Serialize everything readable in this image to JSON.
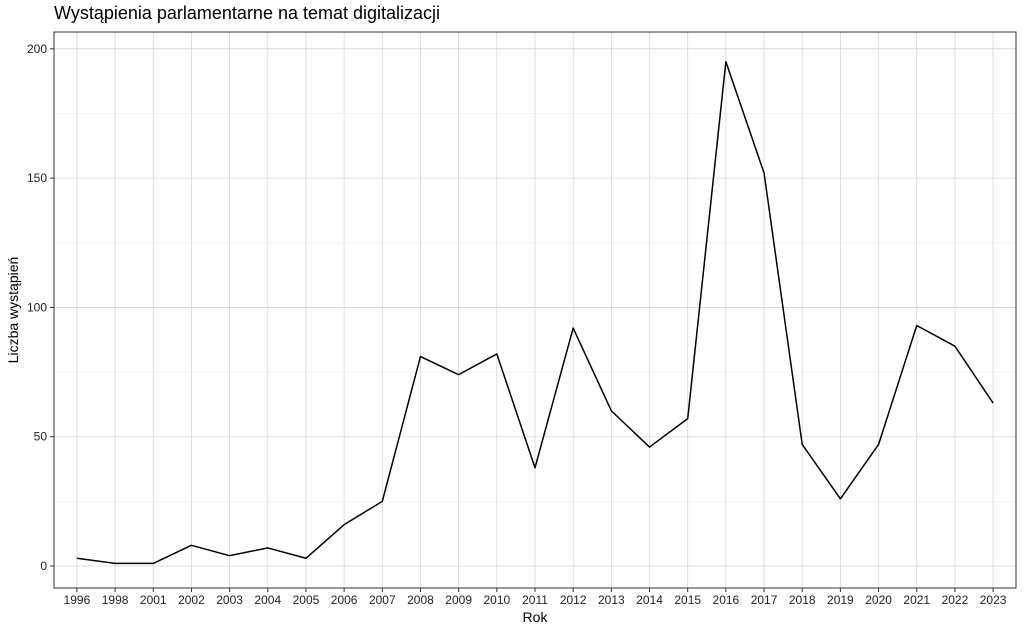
{
  "chart_data": {
    "type": "line",
    "title": "Wystąpienia parlamentarne na temat digitalizacji",
    "xlabel": "Rok",
    "ylabel": "Liczba wystąpień",
    "categories": [
      "1996",
      "1998",
      "2001",
      "2002",
      "2003",
      "2004",
      "2005",
      "2006",
      "2007",
      "2008",
      "2009",
      "2010",
      "2011",
      "2012",
      "2013",
      "2014",
      "2015",
      "2016",
      "2017",
      "2018",
      "2019",
      "2020",
      "2021",
      "2022",
      "2023"
    ],
    "series": [
      {
        "values": [
          3,
          1,
          1,
          8,
          4,
          7,
          3,
          16,
          25,
          81,
          74,
          82,
          38,
          92,
          60,
          46,
          57,
          195,
          152,
          47,
          26,
          47,
          93,
          85,
          63
        ]
      }
    ],
    "ylim": [
      -8.5,
      206.5
    ],
    "yticks": [
      0,
      50,
      100,
      150,
      200
    ],
    "grid": true,
    "legend": "none",
    "line_color": "#000000"
  }
}
